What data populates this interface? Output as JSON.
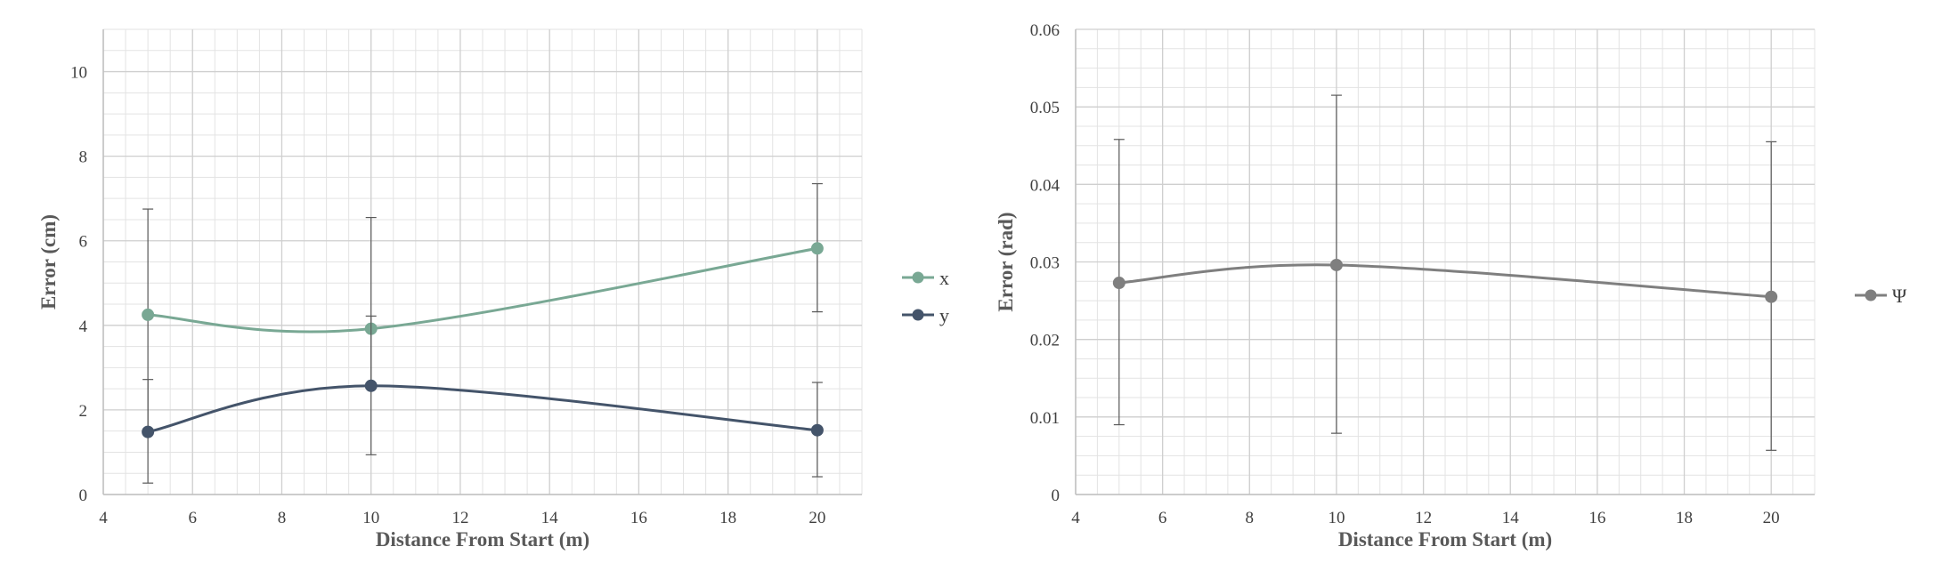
{
  "chart_data": [
    {
      "type": "line",
      "title": "",
      "xlabel": "Distance From Start (m)",
      "ylabel": "Error (cm)",
      "xlim": [
        4,
        21
      ],
      "ylim": [
        0,
        11
      ],
      "xticks": [
        4,
        6,
        8,
        10,
        12,
        14,
        16,
        18,
        20
      ],
      "yticks": [
        0,
        2,
        4,
        6,
        8,
        10
      ],
      "grid": true,
      "legend_position": "right",
      "x": [
        5,
        10,
        20
      ],
      "series": [
        {
          "name": "x",
          "color": "#79A894",
          "values": [
            4.25,
            3.92,
            5.82
          ],
          "err_low": [
            1.55,
            2.62,
            4.32
          ],
          "err_high": [
            6.75,
            6.55,
            7.35
          ]
        },
        {
          "name": "y",
          "color": "#44546A",
          "values": [
            1.48,
            2.57,
            1.52
          ],
          "err_low": [
            0.27,
            0.94,
            0.42
          ],
          "err_high": [
            2.72,
            4.22,
            2.65
          ]
        }
      ]
    },
    {
      "type": "line",
      "title": "",
      "xlabel": "Distance From Start (m)",
      "ylabel": "Error (rad)",
      "xlim": [
        4,
        21
      ],
      "ylim": [
        0,
        0.06
      ],
      "xticks": [
        4,
        6,
        8,
        10,
        12,
        14,
        16,
        18,
        20
      ],
      "yticks": [
        0,
        0.01,
        0.02,
        0.03,
        0.04,
        0.05,
        0.06
      ],
      "ytick_labels": [
        "0",
        "0.01",
        "0.02",
        "0.03",
        "0.04",
        "0.05",
        "0.06"
      ],
      "grid": true,
      "legend_position": "right",
      "x": [
        5,
        10,
        20
      ],
      "series": [
        {
          "name": "Ψ",
          "color": "#7F7F7F",
          "values": [
            0.0273,
            0.0296,
            0.0255
          ],
          "err_low": [
            0.009,
            0.0079,
            0.0057
          ],
          "err_high": [
            0.0458,
            0.0515,
            0.0455
          ]
        }
      ]
    }
  ]
}
